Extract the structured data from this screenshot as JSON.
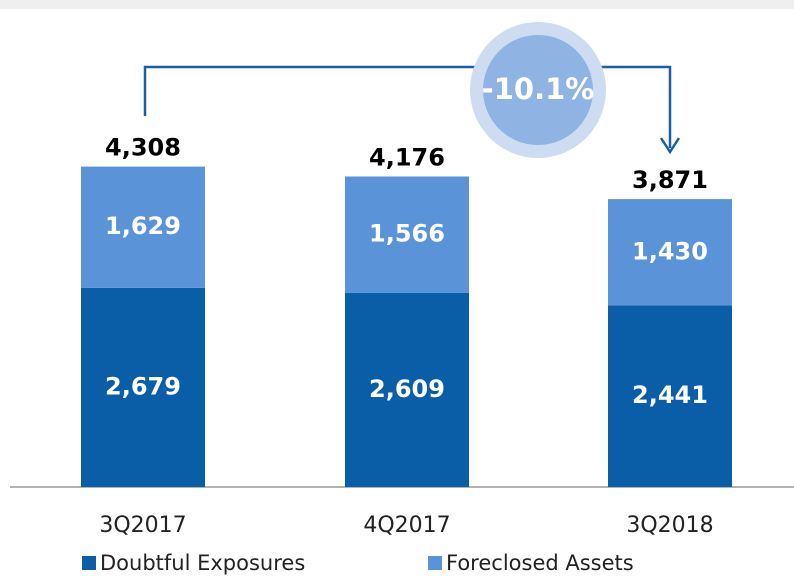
{
  "chart_data": {
    "type": "stacked_bar",
    "categories": [
      "3Q2017",
      "4Q2017",
      "3Q2018"
    ],
    "series": [
      {
        "name": "Doubtful Exposures",
        "color": "#0a5ea8",
        "values": [
          2679,
          2609,
          2441
        ],
        "value_labels": [
          "2,679",
          "2,609",
          "2,441"
        ]
      },
      {
        "name": "Foreclosed Assets",
        "color": "#5b93d8",
        "values": [
          1629,
          1566,
          1430
        ],
        "value_labels": [
          "1,629",
          "1,566",
          "1,430"
        ]
      }
    ],
    "totals": {
      "values": [
        4308,
        4176,
        3871
      ],
      "value_labels": [
        "4,308",
        "4,176",
        "3,871"
      ]
    },
    "annotation": "-10.1%",
    "ylim": [
      0,
      4800
    ]
  }
}
